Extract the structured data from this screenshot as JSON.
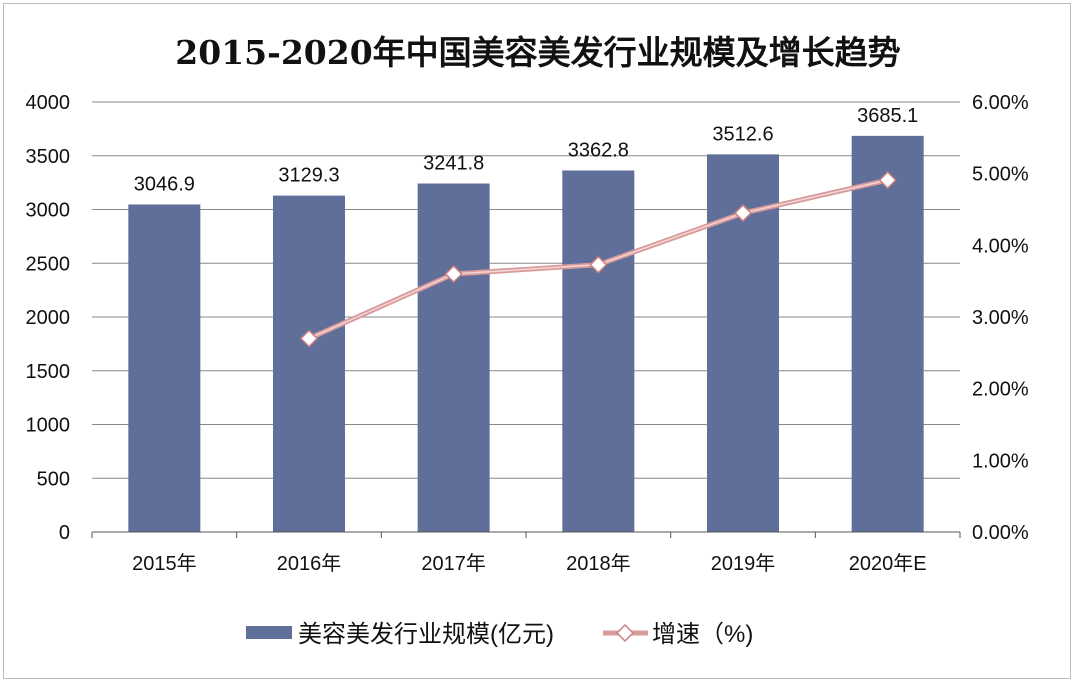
{
  "chart_data": {
    "type": "bar",
    "title": "2015-2020年中国美容美发行业规模及增长趋势",
    "categories": [
      "2015年",
      "2016年",
      "2017年",
      "2018年",
      "2019年",
      "2020年E"
    ],
    "series": [
      {
        "name": "美容美发行业规模(亿元)",
        "type": "bar",
        "axis": "left",
        "values": [
          3046.9,
          3129.3,
          3241.8,
          3362.8,
          3512.6,
          3685.1
        ],
        "data_labels": [
          "3046.9",
          "3129.3",
          "3241.8",
          "3362.8",
          "3512.6",
          "3685.1"
        ],
        "color": "#5f6f9a"
      },
      {
        "name": "增速（%)",
        "type": "line",
        "axis": "right",
        "values": [
          null,
          2.7,
          3.6,
          3.73,
          4.45,
          4.91
        ],
        "color": "#d99a9a",
        "marker": "diamond-open"
      }
    ],
    "y_left": {
      "range": [
        0,
        4000
      ],
      "ticks": [
        "0",
        "500",
        "1000",
        "1500",
        "2000",
        "2500",
        "3000",
        "3500",
        "4000"
      ]
    },
    "y_right": {
      "range": [
        0,
        6
      ],
      "ticks": [
        "0.00%",
        "1.00%",
        "2.00%",
        "3.00%",
        "4.00%",
        "5.00%",
        "6.00%"
      ]
    },
    "grid": true,
    "legend_position": "bottom"
  }
}
